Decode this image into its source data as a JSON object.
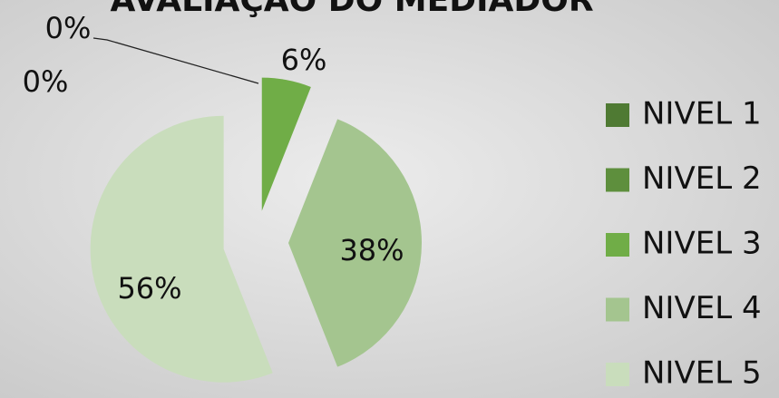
{
  "chart_data": {
    "type": "pie",
    "title": "AVALIAÇÃO DO MEDIADOR",
    "categories": [
      "NIVEL 1",
      "NIVEL 2",
      "NIVEL 3",
      "NIVEL 4",
      "NIVEL 5"
    ],
    "values": [
      0,
      0,
      6,
      38,
      56
    ],
    "value_labels": [
      "0%",
      "0%",
      "6%",
      "38%",
      "56%"
    ],
    "colors": [
      "#4f7a33",
      "#5e8f3d",
      "#70ad47",
      "#a4c58f",
      "#c9ddbc"
    ],
    "legend": "right"
  }
}
